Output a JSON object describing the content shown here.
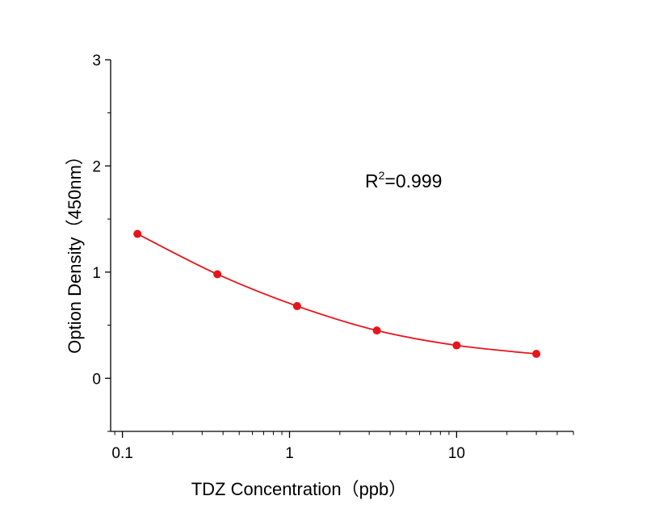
{
  "chart_data": {
    "type": "scatter",
    "xlabel": "TDZ Concentration（ppb）",
    "ylabel": "Option Density（450nm）",
    "x_scale": "log",
    "xlim": [
      0.085,
      50
    ],
    "ylim": [
      -0.5,
      3
    ],
    "x_ticks": [
      0.1,
      1,
      10
    ],
    "x_tick_labels": [
      "0.1",
      "1",
      "10"
    ],
    "y_ticks": [
      0,
      1,
      2,
      3
    ],
    "y_tick_labels": [
      "0",
      "1",
      "2",
      "3"
    ],
    "grid": false,
    "series": [
      {
        "color": "#e8141b",
        "x": [
          0.123,
          0.37,
          1.11,
          3.33,
          10,
          30
        ],
        "y": [
          1.36,
          0.98,
          0.68,
          0.45,
          0.31,
          0.23
        ]
      }
    ],
    "annotation": {
      "base": "R",
      "sup": "2",
      "rest": "=0.999"
    }
  }
}
